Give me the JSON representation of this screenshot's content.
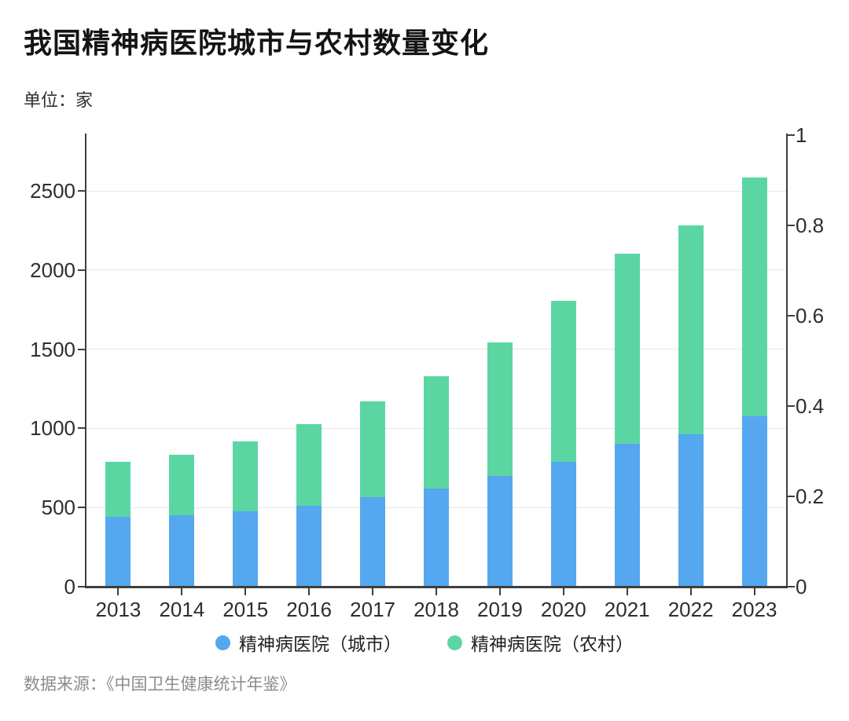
{
  "header": {
    "title": "我国精神病医院城市与农村数量变化",
    "unit_label": "单位：家"
  },
  "legend": [
    {
      "label": "精神病医院（城市）",
      "color": "#55a7ef"
    },
    {
      "label": "精神病医院（农村）",
      "color": "#5bd6a3"
    }
  ],
  "footer": {
    "source": "数据来源：《中国卫生健康统计年鉴》"
  },
  "chart_data": {
    "type": "bar",
    "stacked": true,
    "title": "我国精神病医院城市与农村数量变化",
    "unit": "家",
    "categories": [
      "2013",
      "2014",
      "2015",
      "2016",
      "2017",
      "2018",
      "2019",
      "2020",
      "2021",
      "2022",
      "2023"
    ],
    "series": [
      {
        "name": "精神病医院（城市）",
        "color": "#55a7ef",
        "values": [
          443,
          450,
          478,
          510,
          565,
          620,
          697,
          788,
          902,
          962,
          1077
        ]
      },
      {
        "name": "精神病医院（农村）",
        "color": "#5bd6a3",
        "values": [
          346,
          382,
          441,
          516,
          604,
          709,
          848,
          1019,
          1200,
          1321,
          1506
        ]
      }
    ],
    "totals": [
      789,
      832,
      919,
      1026,
      1169,
      1329,
      1545,
      1807,
      2102,
      2283,
      2583
    ],
    "left_axis": {
      "ticks": [
        0,
        500,
        1000,
        1500,
        2000,
        2500
      ],
      "range": [
        0,
        2860
      ],
      "gridlines": [
        500,
        1000,
        1500,
        2000,
        2500
      ]
    },
    "right_axis": {
      "ticks": [
        "0",
        "0.2",
        "0.4",
        "0.6",
        "0.8",
        "1"
      ],
      "range": [
        0,
        1
      ]
    },
    "grid": true,
    "legend_position": "bottom"
  }
}
